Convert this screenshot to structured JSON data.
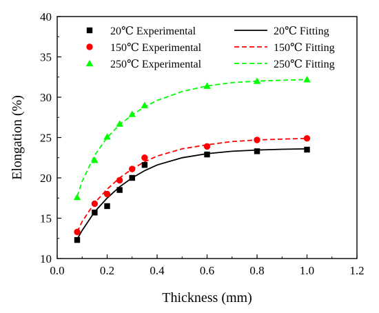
{
  "chart_data": {
    "type": "scatter",
    "xlabel": "Thickness (mm)",
    "ylabel": "Elongation (%)",
    "xlim": [
      0.0,
      1.2
    ],
    "ylim": [
      10,
      40
    ],
    "xticks": [
      "0.0",
      "0.2",
      "0.4",
      "0.6",
      "0.8",
      "1.0",
      "1.2"
    ],
    "yticks": [
      "10",
      "15",
      "20",
      "25",
      "30",
      "35",
      "40"
    ],
    "grid": false,
    "legend_position": "top",
    "series": [
      {
        "name": "20℃ Experimental",
        "kind": "points",
        "marker": "square",
        "color": "#000000",
        "x": [
          0.08,
          0.15,
          0.2,
          0.25,
          0.3,
          0.35,
          0.6,
          0.8,
          1.0
        ],
        "y": [
          12.3,
          15.7,
          16.5,
          18.5,
          20.0,
          21.6,
          22.9,
          23.3,
          23.5
        ]
      },
      {
        "name": "150℃ Experimental",
        "kind": "points",
        "marker": "circle",
        "color": "#ff0000",
        "x": [
          0.08,
          0.15,
          0.2,
          0.25,
          0.3,
          0.35,
          0.6,
          0.8,
          1.0
        ],
        "y": [
          13.3,
          16.8,
          18.0,
          19.7,
          21.1,
          22.5,
          23.9,
          24.7,
          24.9
        ]
      },
      {
        "name": "250℃ Experimental",
        "kind": "points",
        "marker": "triangle",
        "color": "#00ff00",
        "x": [
          0.08,
          0.15,
          0.2,
          0.25,
          0.3,
          0.35,
          0.6,
          0.8,
          1.0
        ],
        "y": [
          17.6,
          22.2,
          25.1,
          26.7,
          27.9,
          29.0,
          31.4,
          32.0,
          32.2
        ]
      },
      {
        "name": "20℃ Fitting",
        "kind": "line",
        "dash": "solid",
        "color": "#000000",
        "x": [
          0.08,
          0.1,
          0.15,
          0.2,
          0.25,
          0.3,
          0.35,
          0.4,
          0.5,
          0.6,
          0.7,
          0.8,
          0.9,
          1.0
        ],
        "y": [
          12.4,
          13.5,
          15.8,
          17.5,
          18.9,
          20.0,
          20.9,
          21.6,
          22.5,
          23.0,
          23.3,
          23.45,
          23.55,
          23.6
        ]
      },
      {
        "name": "150℃ Fitting",
        "kind": "line",
        "dash": "dashed",
        "color": "#ff0000",
        "x": [
          0.08,
          0.1,
          0.15,
          0.2,
          0.25,
          0.3,
          0.35,
          0.4,
          0.5,
          0.6,
          0.7,
          0.8,
          0.9,
          1.0
        ],
        "y": [
          13.3,
          14.6,
          16.9,
          18.6,
          20.0,
          21.1,
          22.0,
          22.7,
          23.6,
          24.1,
          24.5,
          24.7,
          24.8,
          24.9
        ]
      },
      {
        "name": "250℃ Fitting",
        "kind": "line",
        "dash": "dashed",
        "color": "#00ff00",
        "x": [
          0.08,
          0.1,
          0.15,
          0.2,
          0.25,
          0.3,
          0.35,
          0.4,
          0.5,
          0.6,
          0.7,
          0.8,
          0.9,
          1.0
        ],
        "y": [
          17.7,
          19.6,
          22.8,
          25.0,
          26.6,
          27.8,
          28.8,
          29.6,
          30.7,
          31.4,
          31.8,
          32.0,
          32.1,
          32.2
        ]
      }
    ]
  }
}
